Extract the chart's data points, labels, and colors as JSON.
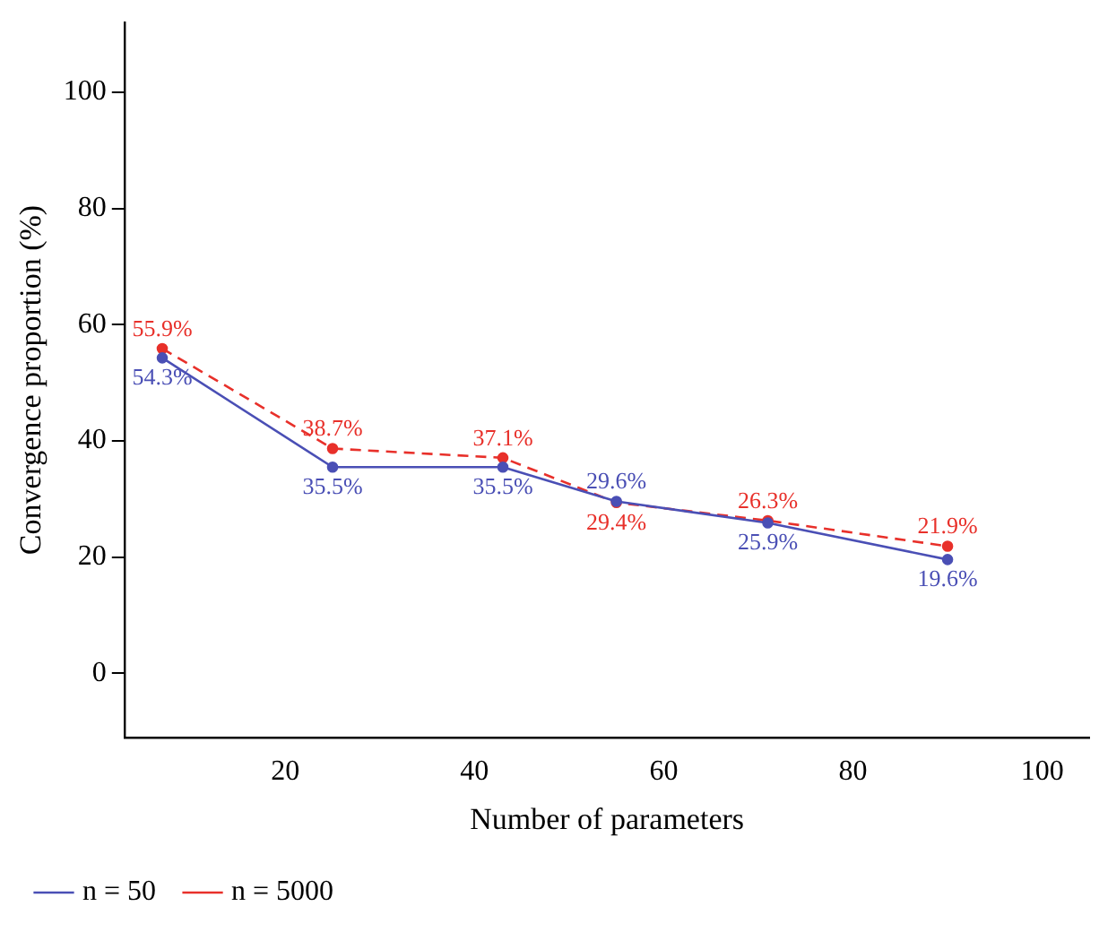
{
  "chart_data": {
    "type": "line",
    "xlabel": "Number of parameters",
    "ylabel": "Convergence proportion (%)",
    "x": [
      7,
      25,
      43,
      55,
      71,
      90
    ],
    "series": [
      {
        "name": "n = 50",
        "color": "#4a4fb5",
        "values": [
          54.3,
          35.5,
          35.5,
          29.6,
          25.9,
          19.6
        ],
        "line_style": "solid",
        "value_labels": [
          "54.3%",
          "35.5%",
          "35.5%",
          "29.6%",
          "25.9%",
          "19.6%"
        ]
      },
      {
        "name": "n = 5000",
        "color": "#e8302a",
        "values": [
          55.9,
          38.7,
          37.1,
          29.4,
          26.3,
          21.9
        ],
        "line_style": "dashed",
        "value_labels": [
          "55.9%",
          "38.7%",
          "37.1%",
          "29.4%",
          "26.3%",
          "21.9%"
        ]
      }
    ],
    "xlim": [
      3,
      105
    ],
    "xticks": [
      20,
      40,
      60,
      80,
      100
    ],
    "ylim": [
      -11,
      112
    ],
    "yticks": [
      0,
      20,
      40,
      60,
      80,
      100
    ],
    "grid": false,
    "legend": "bottom left",
    "marker": "circle"
  }
}
